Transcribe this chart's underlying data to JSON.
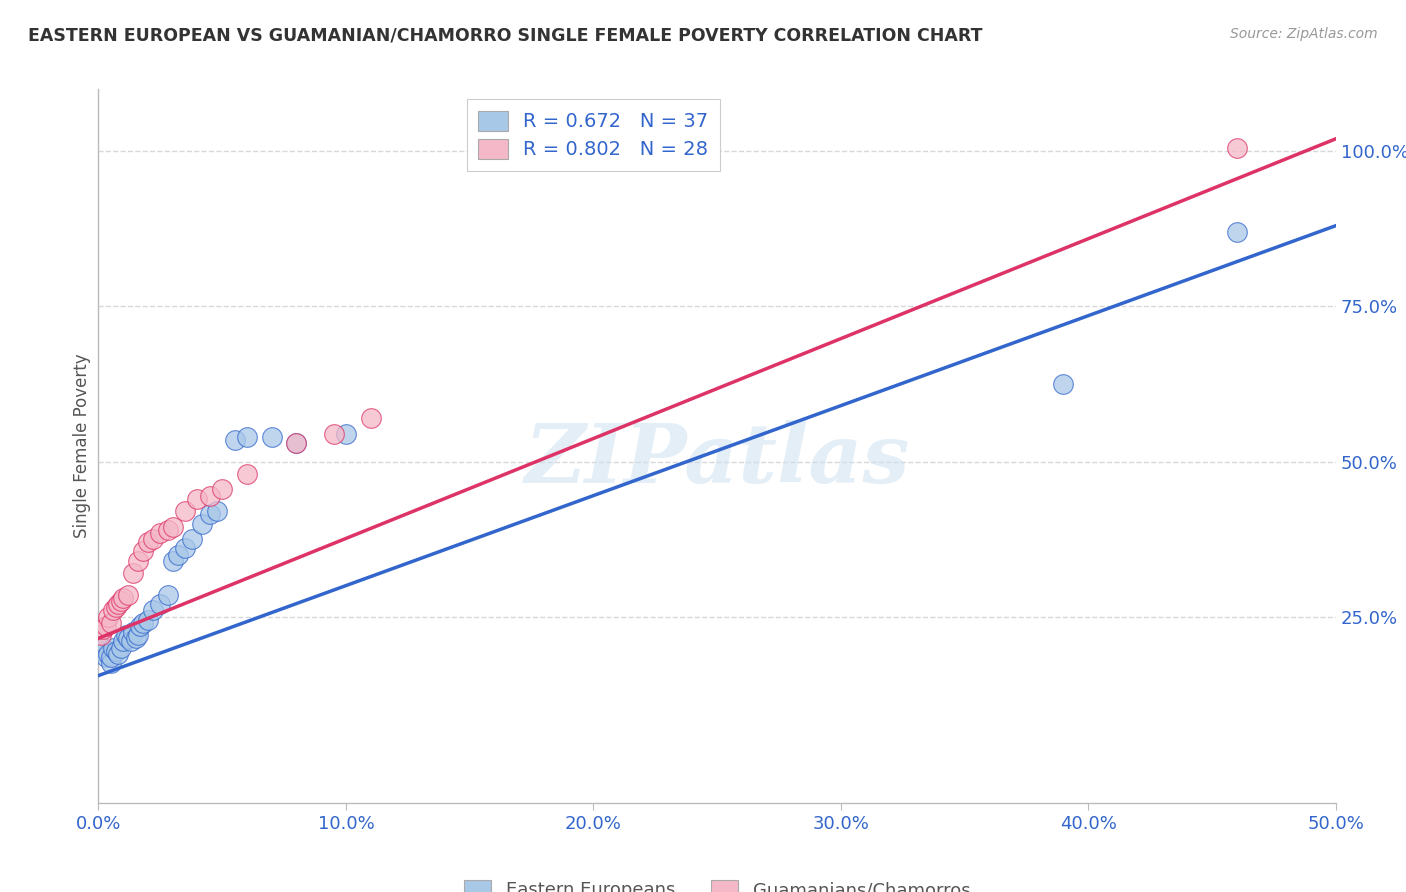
{
  "title": "EASTERN EUROPEAN VS GUAMANIAN/CHAMORRO SINGLE FEMALE POVERTY CORRELATION CHART",
  "source": "Source: ZipAtlas.com",
  "ylabel": "Single Female Poverty",
  "xmin": 0.0,
  "xmax": 0.5,
  "ymin": 0.0,
  "ymax": 1.1,
  "blue_R": 0.672,
  "blue_N": 37,
  "pink_R": 0.802,
  "pink_N": 28,
  "blue_color": "#a8c8e8",
  "pink_color": "#f4b8c8",
  "blue_line_color": "#3366cc",
  "pink_line_color": "#dd3366",
  "legend_label_blue": "Eastern Europeans",
  "legend_label_pink": "Guamanians/Chamorros",
  "xtick_labels": [
    "0.0%",
    "10.0%",
    "20.0%",
    "30.0%",
    "40.0%",
    "50.0%"
  ],
  "xtick_values": [
    0.0,
    0.1,
    0.2,
    0.3,
    0.4,
    0.5
  ],
  "ytick_labels": [
    "25.0%",
    "50.0%",
    "75.0%",
    "100.0%"
  ],
  "ytick_values": [
    0.25,
    0.5,
    0.75,
    1.0
  ],
  "blue_x": [
    0.001,
    0.002,
    0.003,
    0.004,
    0.005,
    0.005,
    0.006,
    0.007,
    0.008,
    0.009,
    0.01,
    0.011,
    0.012,
    0.013,
    0.014,
    0.015,
    0.016,
    0.017,
    0.018,
    0.02,
    0.022,
    0.025,
    0.028,
    0.03,
    0.032,
    0.035,
    0.038,
    0.042,
    0.045,
    0.048,
    0.055,
    0.06,
    0.07,
    0.08,
    0.1,
    0.39,
    0.46
  ],
  "blue_y": [
    0.195,
    0.2,
    0.185,
    0.19,
    0.175,
    0.185,
    0.2,
    0.195,
    0.19,
    0.2,
    0.21,
    0.22,
    0.215,
    0.21,
    0.225,
    0.215,
    0.22,
    0.235,
    0.24,
    0.245,
    0.26,
    0.27,
    0.285,
    0.34,
    0.35,
    0.36,
    0.375,
    0.4,
    0.415,
    0.42,
    0.535,
    0.54,
    0.54,
    0.53,
    0.545,
    0.625,
    0.87
  ],
  "pink_x": [
    0.001,
    0.002,
    0.003,
    0.004,
    0.005,
    0.006,
    0.007,
    0.008,
    0.009,
    0.01,
    0.012,
    0.014,
    0.016,
    0.018,
    0.02,
    0.022,
    0.025,
    0.028,
    0.03,
    0.035,
    0.04,
    0.045,
    0.05,
    0.06,
    0.08,
    0.095,
    0.11,
    0.46
  ],
  "pink_y": [
    0.22,
    0.23,
    0.235,
    0.25,
    0.24,
    0.26,
    0.265,
    0.27,
    0.275,
    0.28,
    0.285,
    0.32,
    0.34,
    0.355,
    0.37,
    0.375,
    0.385,
    0.39,
    0.395,
    0.42,
    0.44,
    0.445,
    0.455,
    0.48,
    0.53,
    0.545,
    0.57,
    1.005
  ],
  "watermark": "ZIPatlas",
  "background_color": "#ffffff",
  "grid_color": "#d8d8d8"
}
